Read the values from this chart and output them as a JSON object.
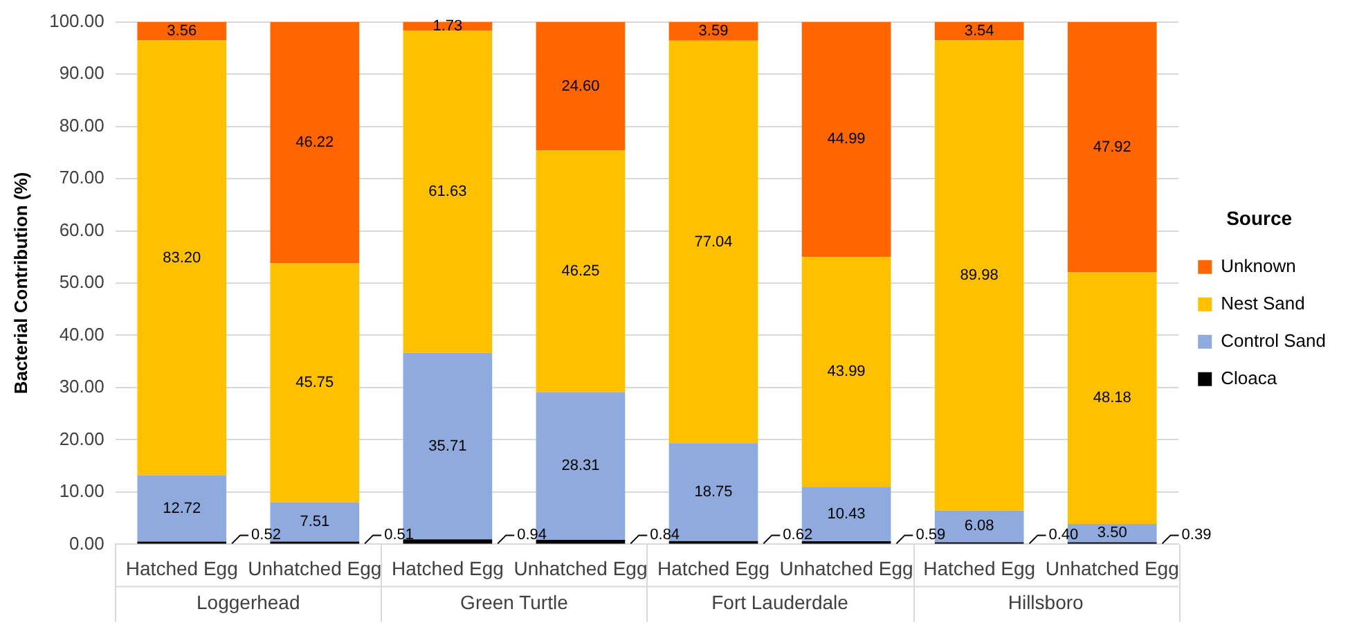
{
  "chart_data": {
    "type": "bar",
    "stacked": true,
    "ylabel": "Bacterial Contribution (%)",
    "legend_title": "Source",
    "legend": "right",
    "grid": "y",
    "categories": [
      "Hatched Egg",
      "Unhatched Egg",
      "Hatched Egg",
      "Unhatched Egg",
      "Hatched Egg",
      "Unhatched Egg",
      "Hatched Egg",
      "Unhatched Egg"
    ],
    "annotations": [
      "Loggerhead",
      "Green Turtle",
      "Fort Lauderdale",
      "Hillsboro"
    ],
    "ylim": [
      0,
      100
    ],
    "yticks": [
      {
        "value": 0,
        "label": "0.00"
      },
      {
        "value": 10,
        "label": "10.00"
      },
      {
        "value": 20,
        "label": "20.00"
      },
      {
        "value": 30,
        "label": "30.00"
      },
      {
        "value": 40,
        "label": "40.00"
      },
      {
        "value": 50,
        "label": "50.00"
      },
      {
        "value": 60,
        "label": "60.00"
      },
      {
        "value": 70,
        "label": "70.00"
      },
      {
        "value": 80,
        "label": "80.00"
      },
      {
        "value": 90,
        "label": "90.00"
      },
      {
        "value": 100,
        "label": "100.00"
      }
    ],
    "series": [
      {
        "name": "Cloaca",
        "color": "#000000",
        "values": [
          0.52,
          0.51,
          0.94,
          0.84,
          0.62,
          0.59,
          0.4,
          0.39
        ],
        "value_labels": [
          "0.52",
          "0.51",
          "0.94",
          "0.84",
          "0.62",
          "0.59",
          "0.40",
          "0.39"
        ]
      },
      {
        "name": "Control Sand",
        "color": "#8faadc",
        "values": [
          12.72,
          7.51,
          35.71,
          28.31,
          18.75,
          10.43,
          6.08,
          3.5
        ],
        "value_labels": [
          "12.72",
          "7.51",
          "35.71",
          "28.31",
          "18.75",
          "10.43",
          "6.08",
          "3.50"
        ]
      },
      {
        "name": "Nest Sand",
        "color": "#ffc000",
        "values": [
          83.2,
          45.75,
          61.63,
          46.25,
          77.04,
          43.99,
          89.98,
          48.18
        ],
        "value_labels": [
          "83.20",
          "45.75",
          "61.63",
          "46.25",
          "77.04",
          "43.99",
          "89.98",
          "48.18"
        ]
      },
      {
        "name": "Unknown",
        "color": "#ff6600",
        "values": [
          3.56,
          46.22,
          1.73,
          24.6,
          3.59,
          44.99,
          3.54,
          47.92
        ],
        "value_labels": [
          "3.56",
          "46.22",
          "1.73",
          "24.60",
          "3.59",
          "44.99",
          "3.54",
          "47.92"
        ]
      }
    ]
  }
}
